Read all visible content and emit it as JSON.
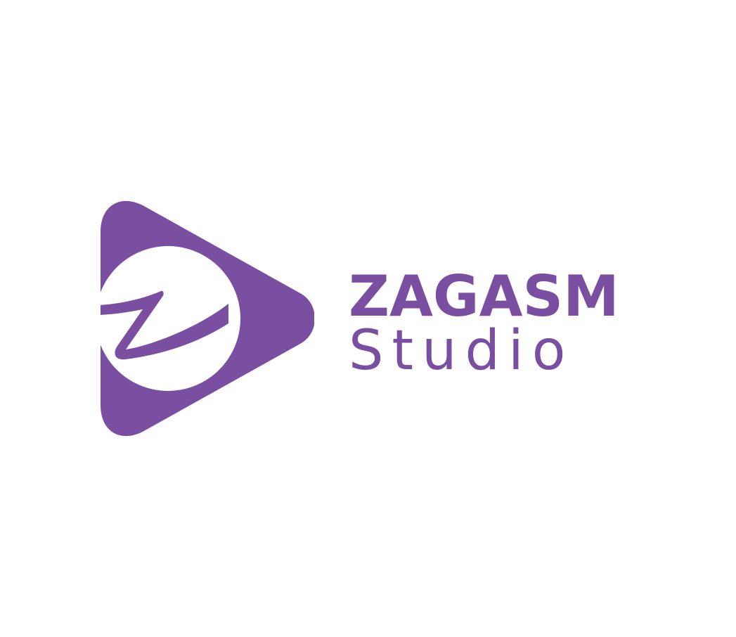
{
  "brand": {
    "name_line1": "ZAGASM",
    "name_line2": "Studio",
    "color": "#7a4fa1",
    "background": "#ffffff"
  },
  "icons": {
    "mark": "play-triangle-z-icon"
  }
}
